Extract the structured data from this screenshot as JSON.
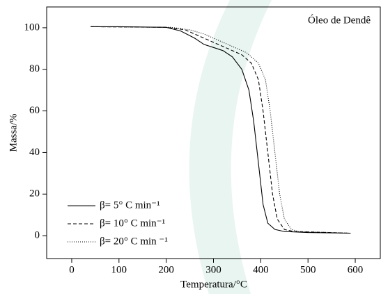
{
  "chart_data": {
    "type": "line",
    "annotation": "Óleo de Dendê",
    "xlabel": "Temperatura/°C",
    "ylabel": "Massa/%",
    "xlim": [
      -53,
      653
    ],
    "xticks": [
      0,
      100,
      200,
      300,
      400,
      500,
      600
    ],
    "ylim": [
      -11,
      110
    ],
    "yticks": [
      0,
      20,
      40,
      60,
      80,
      100
    ],
    "series": [
      {
        "name": "β= 5° C min⁻¹",
        "color": "#000000",
        "dash": "none",
        "x": [
          40,
          100,
          200,
          230,
          260,
          280,
          300,
          320,
          340,
          360,
          375,
          385,
          395,
          405,
          415,
          430,
          450,
          500,
          590
        ],
        "values": [
          100.5,
          100.5,
          100.2,
          98.5,
          95,
          92,
          90.5,
          89,
          86,
          80,
          70,
          55,
          35,
          15,
          6,
          3,
          2,
          1.5,
          1.2
        ]
      },
      {
        "name": "β= 10° C min⁻¹",
        "color": "#000000",
        "dash": "5,3",
        "x": [
          40,
          200,
          240,
          270,
          300,
          330,
          360,
          380,
          395,
          405,
          415,
          425,
          435,
          450,
          470,
          590
        ],
        "values": [
          100.5,
          100.2,
          99,
          96,
          93,
          90,
          87,
          83,
          75,
          60,
          40,
          20,
          8,
          3,
          2,
          1.2
        ]
      },
      {
        "name": "β= 20° C min ⁻¹",
        "color": "#000000",
        "dash": "1,2",
        "x": [
          40,
          210,
          250,
          280,
          310,
          340,
          370,
          395,
          410,
          420,
          430,
          440,
          450,
          465,
          480,
          590
        ],
        "values": [
          100.5,
          100.2,
          99,
          97,
          94,
          91,
          88,
          83,
          75,
          60,
          40,
          20,
          8,
          3,
          2,
          1.2
        ]
      }
    ]
  }
}
